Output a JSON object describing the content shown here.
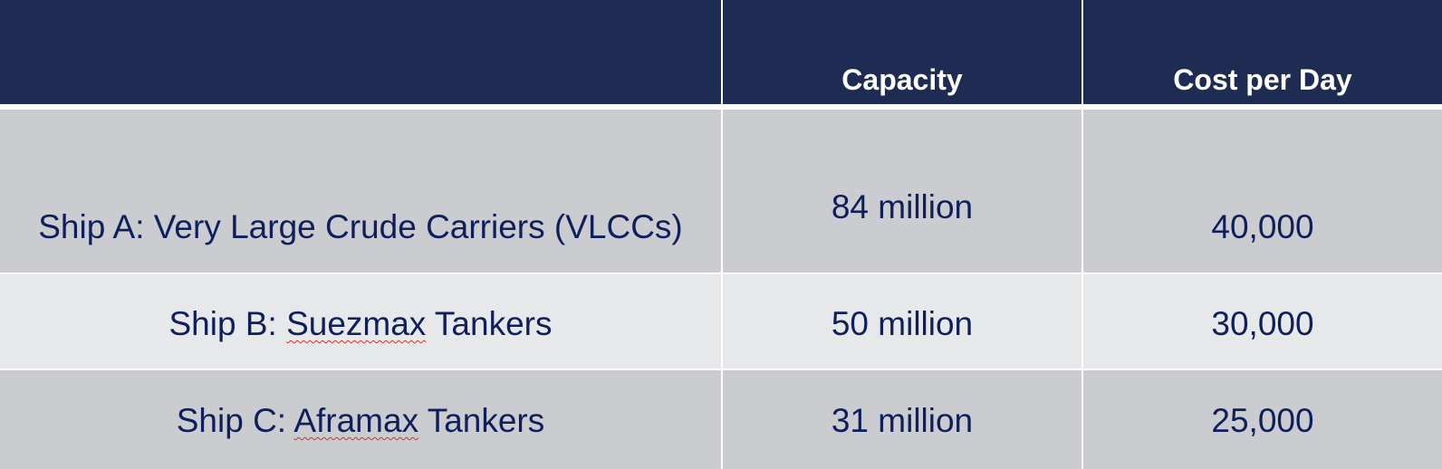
{
  "table": {
    "headers": [
      "",
      "Capacity",
      "Cost per Day"
    ],
    "rows": [
      {
        "ship_prefix": "Ship A: ",
        "ship_name": "Very Large Crude Carriers (VLCCs)",
        "ship_suffix": "",
        "capacity": "84 million",
        "cost_per_day": "40,000"
      },
      {
        "ship_prefix": "Ship B: ",
        "ship_name": "Suezmax",
        "ship_suffix": " Tankers",
        "capacity": "50 million",
        "cost_per_day": "30,000"
      },
      {
        "ship_prefix": "Ship C: ",
        "ship_name": "Aframax",
        "ship_suffix": " Tankers",
        "capacity": "31 million",
        "cost_per_day": "25,000"
      }
    ]
  },
  "colors": {
    "header_background": "#1e2b52",
    "header_text": "#ffffff",
    "body_text": "#0f1f5c",
    "row_dark": "#cbccd0",
    "row_light": "#e7e8ea",
    "spellcheck_underline": "#d0342c"
  }
}
